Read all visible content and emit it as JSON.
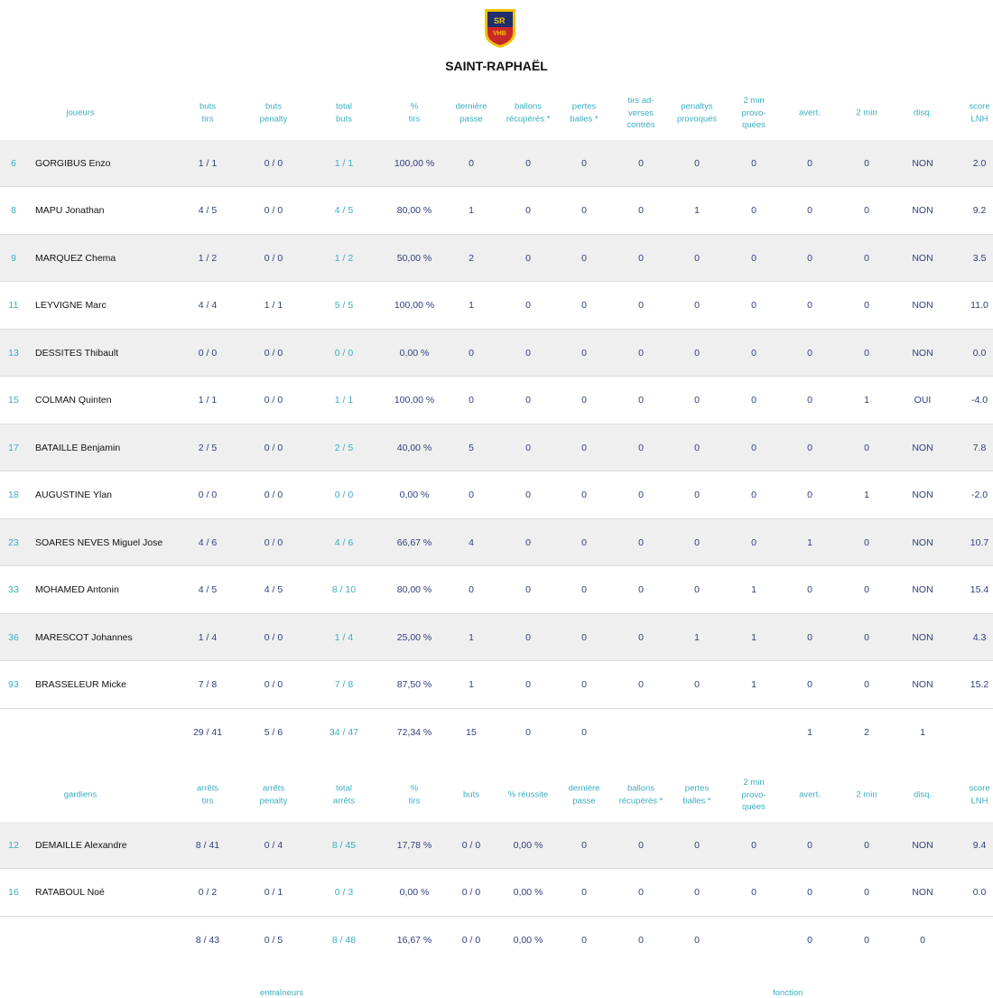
{
  "team": {
    "name": "SAINT-RAPHAËL",
    "logo_text": "SRVHB"
  },
  "colors": {
    "accent": "#3aaec0",
    "value": "#2e3f7c",
    "row_alt": "#efefef"
  },
  "players": {
    "name_header": "joueurs",
    "headers": [
      "buts\ntirs",
      "buts\npenalty",
      "total\nbuts",
      "%\ntirs",
      "dernière\npasse",
      "ballons\nrécupérés *",
      "pertes\nballes *",
      "tirs ad-\nverses\ncontrés",
      "penaltys\nprovoqués",
      "2 min\nprovo-\nquées",
      "avert.",
      "2 min",
      "disq.",
      "score\nLNH"
    ],
    "rows": [
      {
        "num": "6",
        "name": "GORGIBUS Enzo",
        "values": [
          "1 / 1",
          "0 / 0",
          "1 / 1",
          "100,00 %",
          "0",
          "0",
          "0",
          "0",
          "0",
          "0",
          "0",
          "0",
          "NON",
          "2.0"
        ]
      },
      {
        "num": "8",
        "name": "MAPU Jonathan",
        "values": [
          "4 / 5",
          "0 / 0",
          "4 / 5",
          "80,00 %",
          "1",
          "0",
          "0",
          "0",
          "1",
          "0",
          "0",
          "0",
          "NON",
          "9.2"
        ]
      },
      {
        "num": "9",
        "name": "MARQUEZ Chema",
        "values": [
          "1 / 2",
          "0 / 0",
          "1 / 2",
          "50,00 %",
          "2",
          "0",
          "0",
          "0",
          "0",
          "0",
          "0",
          "0",
          "NON",
          "3.5"
        ]
      },
      {
        "num": "11",
        "name": "LEYVIGNE Marc",
        "values": [
          "4 / 4",
          "1 / 1",
          "5 / 5",
          "100,00 %",
          "1",
          "0",
          "0",
          "0",
          "0",
          "0",
          "0",
          "0",
          "NON",
          "11.0"
        ]
      },
      {
        "num": "13",
        "name": "DESSITES Thibault",
        "values": [
          "0 / 0",
          "0 / 0",
          "0 / 0",
          "0,00 %",
          "0",
          "0",
          "0",
          "0",
          "0",
          "0",
          "0",
          "0",
          "NON",
          "0.0"
        ]
      },
      {
        "num": "15",
        "name": "COLMAN Quinten",
        "values": [
          "1 / 1",
          "0 / 0",
          "1 / 1",
          "100,00 %",
          "0",
          "0",
          "0",
          "0",
          "0",
          "0",
          "0",
          "1",
          "OUI",
          "-4.0"
        ]
      },
      {
        "num": "17",
        "name": "BATAILLE Benjamin",
        "values": [
          "2 / 5",
          "0 / 0",
          "2 / 5",
          "40,00 %",
          "5",
          "0",
          "0",
          "0",
          "0",
          "0",
          "0",
          "0",
          "NON",
          "7.8"
        ]
      },
      {
        "num": "18",
        "name": "AUGUSTINE Ylan",
        "values": [
          "0 / 0",
          "0 / 0",
          "0 / 0",
          "0,00 %",
          "0",
          "0",
          "0",
          "0",
          "0",
          "0",
          "0",
          "1",
          "NON",
          "-2.0"
        ]
      },
      {
        "num": "23",
        "name": "SOARES NEVES Miguel Jose",
        "values": [
          "4 / 6",
          "0 / 0",
          "4 / 6",
          "66,67 %",
          "4",
          "0",
          "0",
          "0",
          "0",
          "0",
          "1",
          "0",
          "NON",
          "10.7"
        ]
      },
      {
        "num": "33",
        "name": "MOHAMED Antonin",
        "values": [
          "4 / 5",
          "4 / 5",
          "8 / 10",
          "80,00 %",
          "0",
          "0",
          "0",
          "0",
          "0",
          "1",
          "0",
          "0",
          "NON",
          "15.4"
        ]
      },
      {
        "num": "36",
        "name": "MARESCOT Johannes",
        "values": [
          "1 / 4",
          "0 / 0",
          "1 / 4",
          "25,00 %",
          "1",
          "0",
          "0",
          "0",
          "1",
          "1",
          "0",
          "0",
          "NON",
          "4.3"
        ]
      },
      {
        "num": "93",
        "name": "BRASSELEUR Micke",
        "values": [
          "7 / 8",
          "0 / 0",
          "7 / 8",
          "87,50 %",
          "1",
          "0",
          "0",
          "0",
          "0",
          "1",
          "0",
          "0",
          "NON",
          "15.2"
        ]
      }
    ],
    "totals": [
      "29 / 41",
      "5 / 6",
      "34 / 47",
      "72,34 %",
      "15",
      "0",
      "0",
      "",
      "",
      "",
      "1",
      "2",
      "1",
      ""
    ]
  },
  "goalkeepers": {
    "name_header": "gardiens",
    "headers": [
      "arrêts\ntirs",
      "arrêts\npenalty",
      "total\narrêts",
      "%\ntirs",
      "buts",
      "% réussite",
      "dernière\npasse",
      "ballons\nrécupérés *",
      "pertes\nballes *",
      "2 min\nprovo-\nquées",
      "avert.",
      "2 min",
      "disq.",
      "score\nLNH"
    ],
    "rows": [
      {
        "num": "12",
        "name": "DEMAILLE Alexandre",
        "values": [
          "8 / 41",
          "0 / 4",
          "8 / 45",
          "17,78 %",
          "0 / 0",
          "0,00 %",
          "0",
          "0",
          "0",
          "0",
          "0",
          "0",
          "NON",
          "9.4"
        ]
      },
      {
        "num": "16",
        "name": "RATABOUL Noé",
        "values": [
          "0 / 2",
          "0 / 1",
          "0 / 3",
          "0,00 %",
          "0 / 0",
          "0,00 %",
          "0",
          "0",
          "0",
          "0",
          "0",
          "0",
          "NON",
          "0.0"
        ]
      }
    ],
    "totals": [
      "8 / 43",
      "0 / 5",
      "8 / 48",
      "16,67 %",
      "0 / 0",
      "0,00 %",
      "0",
      "0",
      "0",
      "",
      "0",
      "0",
      "0",
      ""
    ]
  },
  "footer": {
    "left_header": "entraîneurs",
    "right_header": "fonction"
  }
}
